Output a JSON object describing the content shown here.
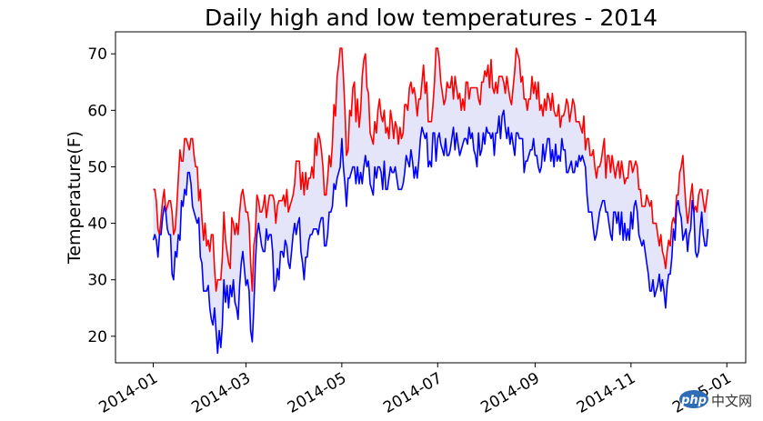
{
  "chart_data": {
    "type": "line",
    "title": "Daily high and low temperatures - 2014",
    "xlabel": "",
    "ylabel": "Temperature(F)",
    "x_start": "2014-01-01",
    "x_end": "2014-12-20",
    "xlim": [
      "2013-12-08",
      "2015-01-13"
    ],
    "ylim": [
      15.3,
      73.9
    ],
    "xticks": [
      "2014-01",
      "2014-03",
      "2014-05",
      "2014-07",
      "2014-09",
      "2014-11",
      "2015-01"
    ],
    "yticks": [
      20,
      30,
      40,
      50,
      60,
      70
    ],
    "fill_between": true,
    "fill_color": "#e5e5fa",
    "grid": false,
    "legend": "none",
    "series": [
      {
        "color": "#ff0000",
        "anchors": [
          [
            "2014-01-01",
            46
          ],
          [
            "2014-01-04",
            39
          ],
          [
            "2014-01-07",
            44
          ],
          [
            "2014-01-12",
            44
          ],
          [
            "2014-01-14",
            38
          ],
          [
            "2014-01-17",
            48
          ],
          [
            "2014-01-21",
            55
          ],
          [
            "2014-01-25",
            55
          ],
          [
            "2014-01-29",
            50
          ],
          [
            "2014-02-01",
            41
          ],
          [
            "2014-02-04",
            36
          ],
          [
            "2014-02-08",
            38
          ],
          [
            "2014-02-10",
            28
          ],
          [
            "2014-02-13",
            30
          ],
          [
            "2014-02-15",
            42
          ],
          [
            "2014-02-18",
            33
          ],
          [
            "2014-02-21",
            40
          ],
          [
            "2014-02-24",
            38
          ],
          [
            "2014-02-27",
            46
          ],
          [
            "2014-03-03",
            40
          ],
          [
            "2014-03-05",
            28
          ],
          [
            "2014-03-08",
            45
          ],
          [
            "2014-03-12",
            43
          ],
          [
            "2014-03-16",
            45
          ],
          [
            "2014-03-20",
            40
          ],
          [
            "2014-03-24",
            44
          ],
          [
            "2014-03-28",
            42
          ],
          [
            "2014-04-03",
            51
          ],
          [
            "2014-04-07",
            45
          ],
          [
            "2014-04-12",
            50
          ],
          [
            "2014-04-17",
            55
          ],
          [
            "2014-04-21",
            45
          ],
          [
            "2014-04-25",
            54
          ],
          [
            "2014-04-29",
            68
          ],
          [
            "2014-05-01",
            71
          ],
          [
            "2014-05-04",
            52
          ],
          [
            "2014-05-08",
            64
          ],
          [
            "2014-05-12",
            57
          ],
          [
            "2014-05-16",
            70
          ],
          [
            "2014-05-20",
            55
          ],
          [
            "2014-05-25",
            62
          ],
          [
            "2014-05-30",
            57
          ],
          [
            "2014-06-04",
            58
          ],
          [
            "2014-06-09",
            56
          ],
          [
            "2014-06-14",
            65
          ],
          [
            "2014-06-18",
            59
          ],
          [
            "2014-06-22",
            68
          ],
          [
            "2014-06-26",
            58
          ],
          [
            "2014-07-01",
            71
          ],
          [
            "2014-07-05",
            61
          ],
          [
            "2014-07-10",
            66
          ],
          [
            "2014-07-16",
            60
          ],
          [
            "2014-07-22",
            64
          ],
          [
            "2014-07-28",
            61
          ],
          [
            "2014-08-02",
            68
          ],
          [
            "2014-08-06",
            63
          ],
          [
            "2014-08-11",
            66
          ],
          [
            "2014-08-16",
            62
          ],
          [
            "2014-08-21",
            70
          ],
          [
            "2014-08-26",
            62
          ],
          [
            "2014-08-31",
            63
          ],
          [
            "2014-09-05",
            61
          ],
          [
            "2014-09-10",
            62
          ],
          [
            "2014-09-15",
            59
          ],
          [
            "2014-09-20",
            60
          ],
          [
            "2014-09-25",
            62
          ],
          [
            "2014-09-30",
            57
          ],
          [
            "2014-10-04",
            55
          ],
          [
            "2014-10-09",
            50
          ],
          [
            "2014-10-14",
            53
          ],
          [
            "2014-10-19",
            49
          ],
          [
            "2014-10-24",
            51
          ],
          [
            "2014-10-29",
            48
          ],
          [
            "2014-11-03",
            50
          ],
          [
            "2014-11-07",
            46
          ],
          [
            "2014-11-12",
            44
          ],
          [
            "2014-11-17",
            40
          ],
          [
            "2014-11-21",
            35
          ],
          [
            "2014-11-23",
            32
          ],
          [
            "2014-11-27",
            40
          ],
          [
            "2014-12-01",
            45
          ],
          [
            "2014-12-04",
            52
          ],
          [
            "2014-12-07",
            40
          ],
          [
            "2014-12-10",
            47
          ],
          [
            "2014-12-13",
            42
          ],
          [
            "2014-12-16",
            46
          ],
          [
            "2014-12-18",
            42
          ],
          [
            "2014-12-20",
            46
          ]
        ]
      },
      {
        "color": "#0000ff",
        "anchors": [
          [
            "2014-01-01",
            37
          ],
          [
            "2014-01-04",
            34
          ],
          [
            "2014-01-07",
            41
          ],
          [
            "2014-01-12",
            38
          ],
          [
            "2014-01-14",
            30
          ],
          [
            "2014-01-17",
            38
          ],
          [
            "2014-01-21",
            46
          ],
          [
            "2014-01-25",
            47
          ],
          [
            "2014-01-29",
            40
          ],
          [
            "2014-02-01",
            33
          ],
          [
            "2014-02-04",
            28
          ],
          [
            "2014-02-08",
            22
          ],
          [
            "2014-02-10",
            21
          ],
          [
            "2014-02-13",
            18
          ],
          [
            "2014-02-15",
            30
          ],
          [
            "2014-02-18",
            25
          ],
          [
            "2014-02-21",
            30
          ],
          [
            "2014-02-24",
            23
          ],
          [
            "2014-02-27",
            35
          ],
          [
            "2014-03-03",
            28
          ],
          [
            "2014-03-05",
            19
          ],
          [
            "2014-03-08",
            38
          ],
          [
            "2014-03-12",
            35
          ],
          [
            "2014-03-16",
            38
          ],
          [
            "2014-03-20",
            29
          ],
          [
            "2014-03-24",
            35
          ],
          [
            "2014-03-28",
            33
          ],
          [
            "2014-04-03",
            40
          ],
          [
            "2014-04-07",
            30
          ],
          [
            "2014-04-12",
            38
          ],
          [
            "2014-04-17",
            40
          ],
          [
            "2014-04-21",
            36
          ],
          [
            "2014-04-25",
            43
          ],
          [
            "2014-04-29",
            49
          ],
          [
            "2014-05-01",
            55
          ],
          [
            "2014-05-04",
            43
          ],
          [
            "2014-05-08",
            50
          ],
          [
            "2014-05-12",
            47
          ],
          [
            "2014-05-16",
            52
          ],
          [
            "2014-05-20",
            46
          ],
          [
            "2014-05-25",
            50
          ],
          [
            "2014-05-30",
            46
          ],
          [
            "2014-06-04",
            50
          ],
          [
            "2014-06-09",
            47
          ],
          [
            "2014-06-14",
            53
          ],
          [
            "2014-06-18",
            48
          ],
          [
            "2014-06-22",
            56
          ],
          [
            "2014-06-26",
            51
          ],
          [
            "2014-07-01",
            55
          ],
          [
            "2014-07-05",
            52
          ],
          [
            "2014-07-10",
            55
          ],
          [
            "2014-07-16",
            53
          ],
          [
            "2014-07-22",
            55
          ],
          [
            "2014-07-28",
            52
          ],
          [
            "2014-08-02",
            56
          ],
          [
            "2014-08-06",
            52
          ],
          [
            "2014-08-11",
            59
          ],
          [
            "2014-08-16",
            54
          ],
          [
            "2014-08-21",
            56
          ],
          [
            "2014-08-26",
            51
          ],
          [
            "2014-08-31",
            55
          ],
          [
            "2014-09-05",
            50
          ],
          [
            "2014-09-10",
            55
          ],
          [
            "2014-09-15",
            51
          ],
          [
            "2014-09-20",
            53
          ],
          [
            "2014-09-25",
            49
          ],
          [
            "2014-09-30",
            51
          ],
          [
            "2014-10-04",
            45
          ],
          [
            "2014-10-09",
            37
          ],
          [
            "2014-10-14",
            44
          ],
          [
            "2014-10-19",
            38
          ],
          [
            "2014-10-24",
            42
          ],
          [
            "2014-10-29",
            37
          ],
          [
            "2014-11-03",
            43
          ],
          [
            "2014-11-07",
            37
          ],
          [
            "2014-11-12",
            31
          ],
          [
            "2014-11-17",
            28
          ],
          [
            "2014-11-21",
            30
          ],
          [
            "2014-11-23",
            25
          ],
          [
            "2014-11-27",
            34
          ],
          [
            "2014-12-01",
            44
          ],
          [
            "2014-12-04",
            37
          ],
          [
            "2014-12-07",
            35
          ],
          [
            "2014-12-10",
            44
          ],
          [
            "2014-12-13",
            34
          ],
          [
            "2014-12-16",
            42
          ],
          [
            "2014-12-18",
            36
          ],
          [
            "2014-12-20",
            39
          ]
        ]
      }
    ]
  },
  "watermark": {
    "logo_text": "php",
    "site_text": "中文网"
  }
}
